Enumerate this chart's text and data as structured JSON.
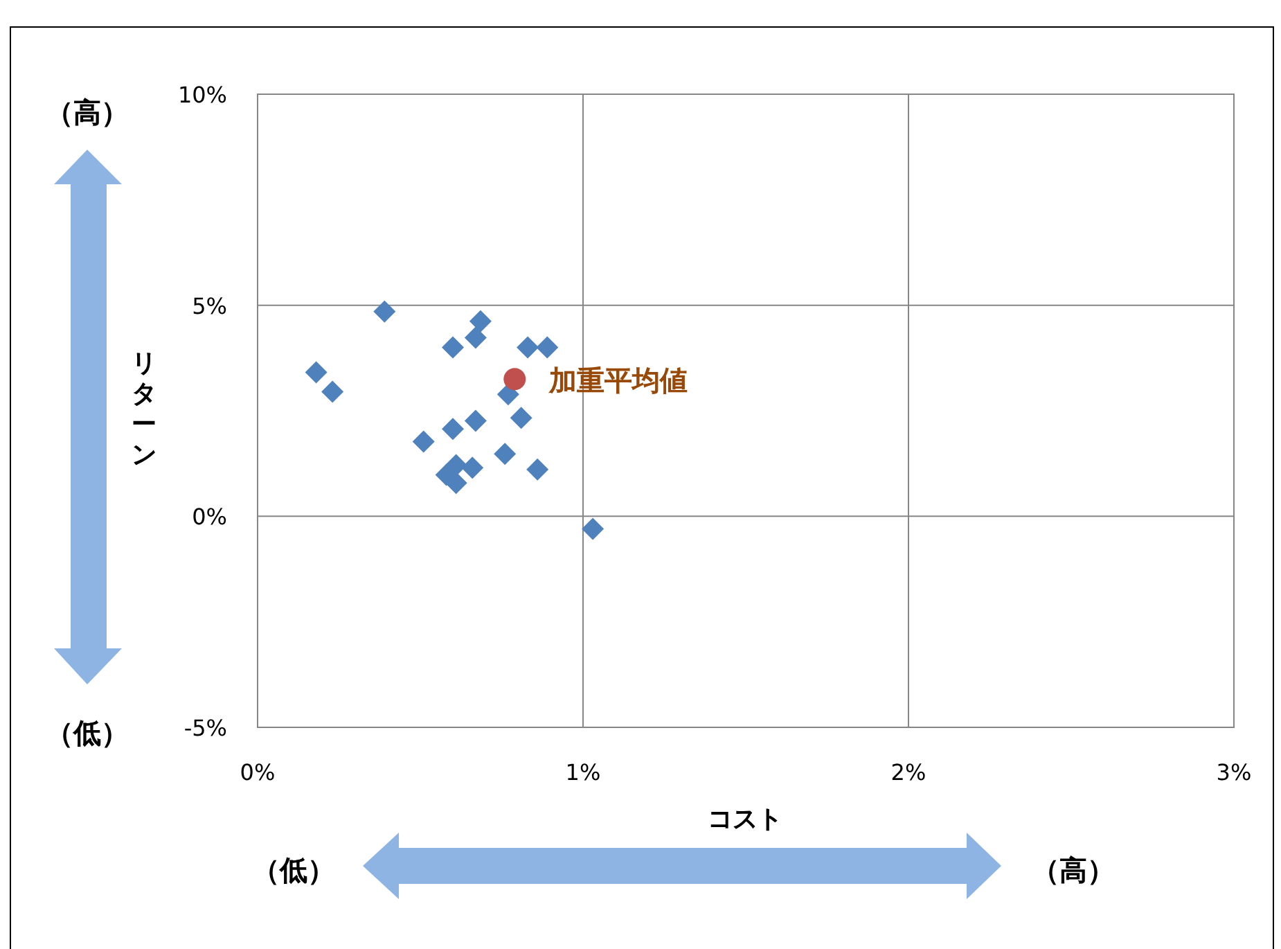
{
  "chart_data": {
    "type": "scatter",
    "xlabel": "コスト",
    "ylabel": "リターン",
    "xlim": [
      0,
      3
    ],
    "ylim": [
      -5,
      10
    ],
    "xticks": [
      {
        "value": 0,
        "label": "0%"
      },
      {
        "value": 1,
        "label": "1%"
      },
      {
        "value": 2,
        "label": "2%"
      },
      {
        "value": 3,
        "label": "3%"
      }
    ],
    "yticks": [
      {
        "value": -5,
        "label": "-5%"
      },
      {
        "value": 0,
        "label": "0%"
      },
      {
        "value": 5,
        "label": "5%"
      },
      {
        "value": 10,
        "label": "10%"
      }
    ],
    "grid": true,
    "series": [
      {
        "color": "#4f81bd",
        "marker": "diamond",
        "x": [
          0.39,
          0.685,
          0.67,
          0.6,
          0.83,
          0.89,
          0.18,
          0.23,
          0.77,
          0.81,
          0.67,
          0.6,
          0.51,
          0.76,
          0.61,
          0.66,
          0.86,
          0.58,
          0.61,
          1.03
        ],
        "values": [
          4.85,
          4.62,
          4.23,
          4.0,
          4.0,
          4.0,
          3.41,
          2.95,
          2.89,
          2.33,
          2.26,
          2.07,
          1.77,
          1.48,
          1.21,
          1.15,
          1.11,
          0.98,
          0.79,
          -0.3
        ]
      },
      {
        "name": "加重平均値",
        "color": "#c0504d",
        "marker": "circle",
        "x": [
          0.79
        ],
        "values": [
          3.25
        ]
      }
    ],
    "annotations": [
      "（高）",
      "（低）",
      "（低）",
      "（高）"
    ]
  }
}
